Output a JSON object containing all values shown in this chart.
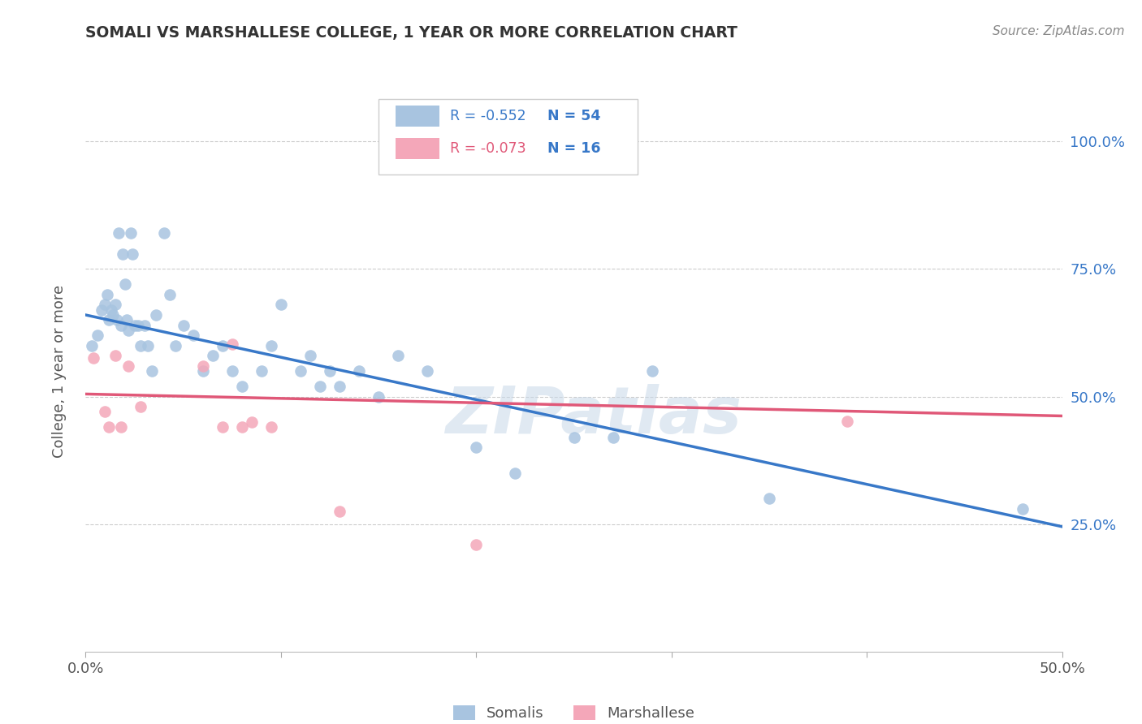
{
  "title": "SOMALI VS MARSHALLESE COLLEGE, 1 YEAR OR MORE CORRELATION CHART",
  "source": "Source: ZipAtlas.com",
  "ylabel": "College, 1 year or more",
  "xlim": [
    0.0,
    0.5
  ],
  "ylim": [
    0.0,
    1.1
  ],
  "somali_R": "-0.552",
  "somali_N": "54",
  "marshallese_R": "-0.073",
  "marshallese_N": "16",
  "somali_color": "#a8c4e0",
  "marshallese_color": "#f4a7b9",
  "somali_line_color": "#3878c8",
  "marshallese_line_color": "#e05878",
  "legend_color": "#3878c8",
  "right_tick_color": "#3878c8",
  "background_color": "#ffffff",
  "grid_color": "#cccccc",
  "watermark": "ZIPatlas",
  "title_color": "#333333",
  "source_color": "#888888",
  "label_color": "#555555",
  "somali_x": [
    0.003,
    0.006,
    0.008,
    0.01,
    0.011,
    0.012,
    0.013,
    0.014,
    0.015,
    0.016,
    0.017,
    0.018,
    0.019,
    0.02,
    0.021,
    0.022,
    0.023,
    0.024,
    0.025,
    0.027,
    0.028,
    0.03,
    0.032,
    0.034,
    0.036,
    0.04,
    0.043,
    0.046,
    0.05,
    0.055,
    0.06,
    0.065,
    0.07,
    0.075,
    0.08,
    0.09,
    0.095,
    0.1,
    0.11,
    0.115,
    0.12,
    0.125,
    0.13,
    0.14,
    0.15,
    0.16,
    0.175,
    0.2,
    0.22,
    0.25,
    0.27,
    0.29,
    0.35,
    0.48
  ],
  "somali_y": [
    0.6,
    0.62,
    0.67,
    0.68,
    0.7,
    0.65,
    0.67,
    0.66,
    0.68,
    0.65,
    0.82,
    0.64,
    0.78,
    0.72,
    0.65,
    0.63,
    0.82,
    0.78,
    0.64,
    0.64,
    0.6,
    0.64,
    0.6,
    0.55,
    0.66,
    0.82,
    0.7,
    0.6,
    0.64,
    0.62,
    0.55,
    0.58,
    0.6,
    0.55,
    0.52,
    0.55,
    0.6,
    0.68,
    0.55,
    0.58,
    0.52,
    0.55,
    0.52,
    0.55,
    0.5,
    0.58,
    0.55,
    0.4,
    0.35,
    0.42,
    0.42,
    0.55,
    0.3,
    0.28
  ],
  "marshallese_x": [
    0.004,
    0.01,
    0.012,
    0.015,
    0.018,
    0.022,
    0.028,
    0.06,
    0.07,
    0.075,
    0.08,
    0.085,
    0.095,
    0.13,
    0.2,
    0.39
  ],
  "marshallese_y": [
    0.575,
    0.47,
    0.44,
    0.58,
    0.44,
    0.56,
    0.48,
    0.56,
    0.44,
    0.602,
    0.44,
    0.45,
    0.44,
    0.275,
    0.21,
    0.452
  ],
  "somali_line_x": [
    0.0,
    0.5
  ],
  "somali_line_y": [
    0.66,
    0.245
  ],
  "marshallese_line_x": [
    0.0,
    0.5
  ],
  "marshallese_line_y": [
    0.505,
    0.462
  ]
}
